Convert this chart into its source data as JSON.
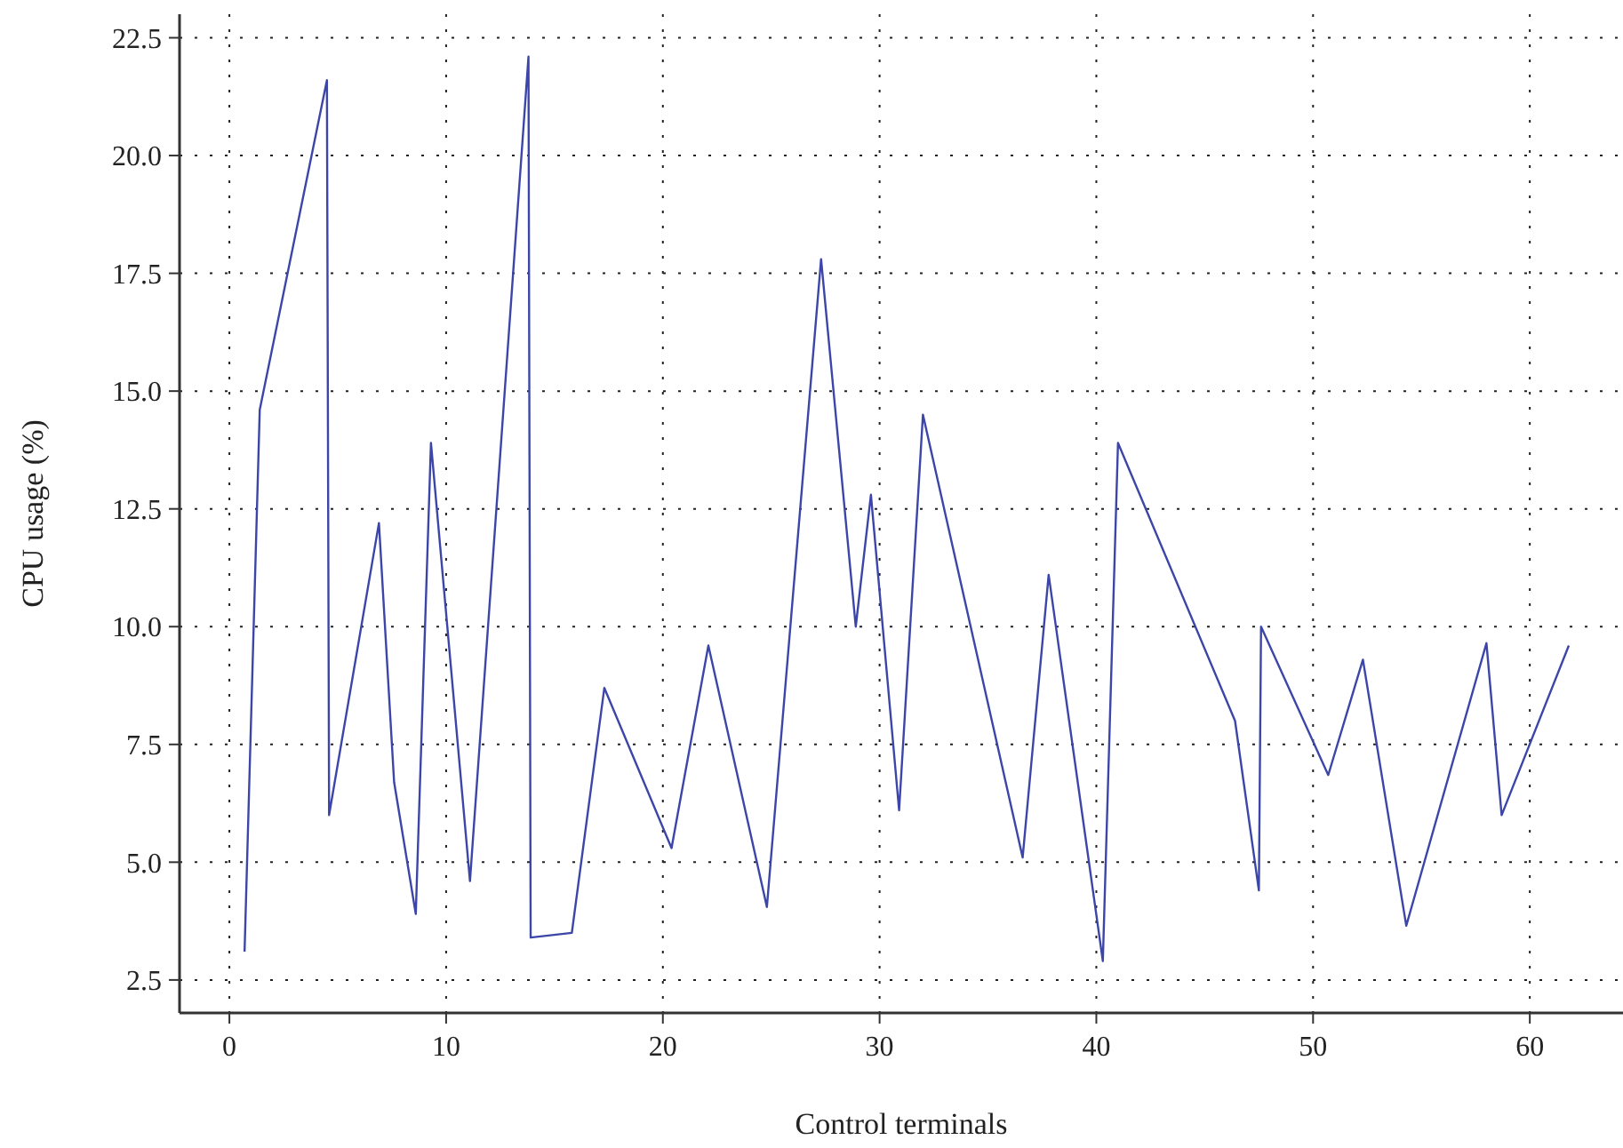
{
  "chart_data": {
    "type": "line",
    "xlabel": "Control terminals",
    "ylabel": "CPU usage (%)",
    "x": [
      0.7,
      1.4,
      4.5,
      4.6,
      6.9,
      7.6,
      8.6,
      9.3,
      11.1,
      13.8,
      13.9,
      15.8,
      17.3,
      20.4,
      22.1,
      24.8,
      27.3,
      28.9,
      29.6,
      30.9,
      32.0,
      36.6,
      37.8,
      40.3,
      41.0,
      46.4,
      47.5,
      47.6,
      50.7,
      52.3,
      54.3,
      58.0,
      58.7,
      61.8
    ],
    "series": [
      {
        "color": "#3c46a8",
        "values": [
          3.1,
          14.6,
          21.6,
          6.0,
          12.2,
          6.7,
          3.9,
          13.9,
          4.6,
          22.1,
          3.4,
          3.5,
          8.7,
          5.3,
          9.6,
          4.05,
          17.8,
          10.0,
          12.8,
          6.1,
          14.5,
          5.1,
          11.1,
          2.9,
          13.9,
          8.0,
          4.4,
          10.0,
          6.85,
          9.3,
          3.65,
          9.65,
          6.0,
          9.6
        ]
      }
    ],
    "xlim": [
      -2.3,
      64.3
    ],
    "ylim": [
      1.8,
      23.0
    ],
    "xticks": [
      0,
      10,
      20,
      30,
      40,
      50,
      60
    ],
    "yticks": [
      {
        "value": 2.5,
        "label": "2.5"
      },
      {
        "value": 5,
        "label": "5.0"
      },
      {
        "value": 7.5,
        "label": "7.5"
      },
      {
        "value": 10,
        "label": "10.0"
      },
      {
        "value": 12.5,
        "label": "12.5"
      },
      {
        "value": 15,
        "label": "15.0"
      },
      {
        "value": 17.5,
        "label": "17.5"
      },
      {
        "value": 20,
        "label": "20.0"
      },
      {
        "value": 22.5,
        "label": "22.5"
      }
    ],
    "grid": true,
    "marker": "none",
    "line_style": "solid"
  }
}
